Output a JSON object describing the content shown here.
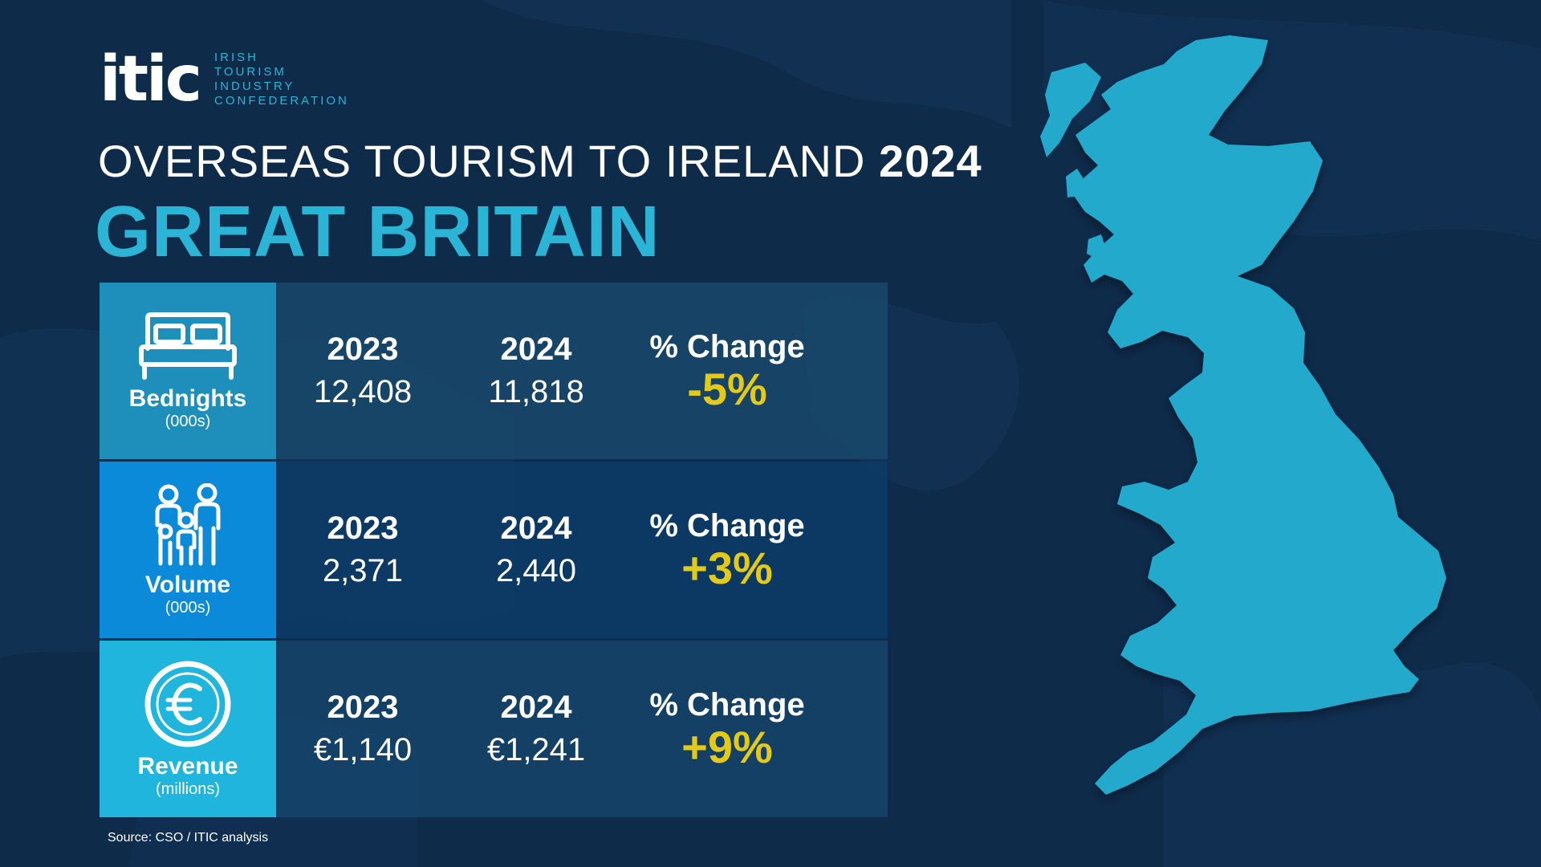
{
  "logo": {
    "mark": "itic",
    "lines": [
      "IRISH",
      "TOURISM",
      "INDUSTRY",
      "CONFEDERATION"
    ]
  },
  "title": {
    "prefix": "OVERSEAS TOURISM TO IRELAND",
    "year": "2024"
  },
  "headline": "GREAT BRITAIN",
  "colors": {
    "accent": "#2bb4d6",
    "change": "#e3c91a",
    "background": "#0e2b4a"
  },
  "rows": [
    {
      "icon": "bed-icon",
      "label": "Bednights",
      "unit": "(000s)",
      "year1": "2023",
      "value1": "12,408",
      "year2": "2024",
      "value2": "11,818",
      "change_label": "% Change",
      "change": "-5%"
    },
    {
      "icon": "family-icon",
      "label": "Volume",
      "unit": "(000s)",
      "year1": "2023",
      "value1": "2,371",
      "year2": "2024",
      "value2": "2,440",
      "change_label": "% Change",
      "change": "+3%"
    },
    {
      "icon": "euro-icon",
      "label": "Revenue",
      "unit": "(millions)",
      "year1": "2023",
      "value1": "€1,140",
      "year2": "2024",
      "value2": "€1,241",
      "change_label": "% Change",
      "change": "+9%"
    }
  ],
  "source": "Source: CSO / ITIC analysis"
}
